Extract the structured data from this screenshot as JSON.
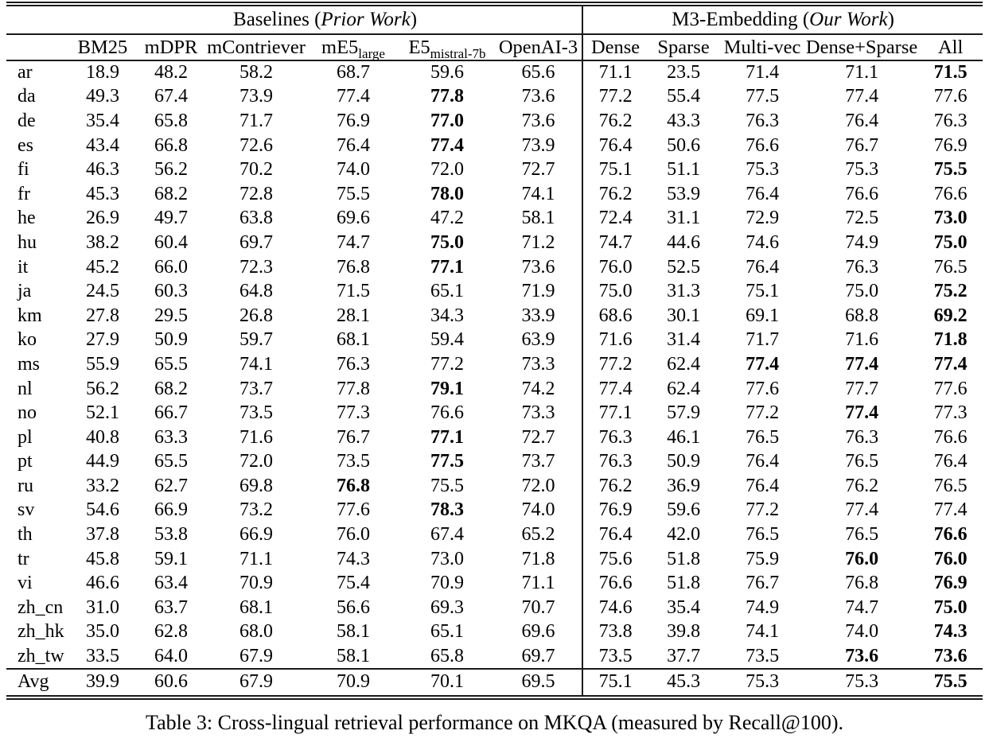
{
  "page": {
    "caption": "Table 3: Cross-lingual retrieval performance on MKQA (measured by Recall@100)."
  },
  "table": {
    "groups": [
      {
        "pre": "Baselines (",
        "italic": "Prior Work",
        "post": ")"
      },
      {
        "pre": "M3-Embedding (",
        "italic": "Our Work",
        "post": ")"
      }
    ],
    "columns": [
      {
        "main": "BM25",
        "sub": ""
      },
      {
        "main": "mDPR",
        "sub": ""
      },
      {
        "main": "mContriever",
        "sub": ""
      },
      {
        "main": "mE5",
        "sub": "large"
      },
      {
        "main": "E5",
        "sub": "mistral-7b"
      },
      {
        "main": "OpenAI-3",
        "sub": ""
      },
      {
        "main": "Dense",
        "sub": ""
      },
      {
        "main": "Sparse",
        "sub": ""
      },
      {
        "main": "Multi-vec",
        "sub": ""
      },
      {
        "main": "Dense+Sparse",
        "sub": ""
      },
      {
        "main": "All",
        "sub": ""
      }
    ],
    "rows": [
      {
        "lang": "ar",
        "values": [
          "18.9",
          "48.2",
          "58.2",
          "68.7",
          "59.6",
          "65.6",
          "71.1",
          "23.5",
          "71.4",
          "71.1",
          "71.5"
        ],
        "bold": [
          10
        ]
      },
      {
        "lang": "da",
        "values": [
          "49.3",
          "67.4",
          "73.9",
          "77.4",
          "77.8",
          "73.6",
          "77.2",
          "55.4",
          "77.5",
          "77.4",
          "77.6"
        ],
        "bold": [
          4
        ]
      },
      {
        "lang": "de",
        "values": [
          "35.4",
          "65.8",
          "71.7",
          "76.9",
          "77.0",
          "73.6",
          "76.2",
          "43.3",
          "76.3",
          "76.4",
          "76.3"
        ],
        "bold": [
          4
        ]
      },
      {
        "lang": "es",
        "values": [
          "43.4",
          "66.8",
          "72.6",
          "76.4",
          "77.4",
          "73.9",
          "76.4",
          "50.6",
          "76.6",
          "76.7",
          "76.9"
        ],
        "bold": [
          4
        ]
      },
      {
        "lang": "fi",
        "values": [
          "46.3",
          "56.2",
          "70.2",
          "74.0",
          "72.0",
          "72.7",
          "75.1",
          "51.1",
          "75.3",
          "75.3",
          "75.5"
        ],
        "bold": [
          10
        ]
      },
      {
        "lang": "fr",
        "values": [
          "45.3",
          "68.2",
          "72.8",
          "75.5",
          "78.0",
          "74.1",
          "76.2",
          "53.9",
          "76.4",
          "76.6",
          "76.6"
        ],
        "bold": [
          4
        ]
      },
      {
        "lang": "he",
        "values": [
          "26.9",
          "49.7",
          "63.8",
          "69.6",
          "47.2",
          "58.1",
          "72.4",
          "31.1",
          "72.9",
          "72.5",
          "73.0"
        ],
        "bold": [
          10
        ]
      },
      {
        "lang": "hu",
        "values": [
          "38.2",
          "60.4",
          "69.7",
          "74.7",
          "75.0",
          "71.2",
          "74.7",
          "44.6",
          "74.6",
          "74.9",
          "75.0"
        ],
        "bold": [
          4,
          10
        ]
      },
      {
        "lang": "it",
        "values": [
          "45.2",
          "66.0",
          "72.3",
          "76.8",
          "77.1",
          "73.6",
          "76.0",
          "52.5",
          "76.4",
          "76.3",
          "76.5"
        ],
        "bold": [
          4
        ]
      },
      {
        "lang": "ja",
        "values": [
          "24.5",
          "60.3",
          "64.8",
          "71.5",
          "65.1",
          "71.9",
          "75.0",
          "31.3",
          "75.1",
          "75.0",
          "75.2"
        ],
        "bold": [
          10
        ]
      },
      {
        "lang": "km",
        "values": [
          "27.8",
          "29.5",
          "26.8",
          "28.1",
          "34.3",
          "33.9",
          "68.6",
          "30.1",
          "69.1",
          "68.8",
          "69.2"
        ],
        "bold": [
          10
        ]
      },
      {
        "lang": "ko",
        "values": [
          "27.9",
          "50.9",
          "59.7",
          "68.1",
          "59.4",
          "63.9",
          "71.6",
          "31.4",
          "71.7",
          "71.6",
          "71.8"
        ],
        "bold": [
          10
        ]
      },
      {
        "lang": "ms",
        "values": [
          "55.9",
          "65.5",
          "74.1",
          "76.3",
          "77.2",
          "73.3",
          "77.2",
          "62.4",
          "77.4",
          "77.4",
          "77.4"
        ],
        "bold": [
          8,
          9,
          10
        ]
      },
      {
        "lang": "nl",
        "values": [
          "56.2",
          "68.2",
          "73.7",
          "77.8",
          "79.1",
          "74.2",
          "77.4",
          "62.4",
          "77.6",
          "77.7",
          "77.6"
        ],
        "bold": [
          4
        ]
      },
      {
        "lang": "no",
        "values": [
          "52.1",
          "66.7",
          "73.5",
          "77.3",
          "76.6",
          "73.3",
          "77.1",
          "57.9",
          "77.2",
          "77.4",
          "77.3"
        ],
        "bold": [
          9
        ]
      },
      {
        "lang": "pl",
        "values": [
          "40.8",
          "63.3",
          "71.6",
          "76.7",
          "77.1",
          "72.7",
          "76.3",
          "46.1",
          "76.5",
          "76.3",
          "76.6"
        ],
        "bold": [
          4
        ]
      },
      {
        "lang": "pt",
        "values": [
          "44.9",
          "65.5",
          "72.0",
          "73.5",
          "77.5",
          "73.7",
          "76.3",
          "50.9",
          "76.4",
          "76.5",
          "76.4"
        ],
        "bold": [
          4
        ]
      },
      {
        "lang": "ru",
        "values": [
          "33.2",
          "62.7",
          "69.8",
          "76.8",
          "75.5",
          "72.0",
          "76.2",
          "36.9",
          "76.4",
          "76.2",
          "76.5"
        ],
        "bold": [
          3
        ]
      },
      {
        "lang": "sv",
        "values": [
          "54.6",
          "66.9",
          "73.2",
          "77.6",
          "78.3",
          "74.0",
          "76.9",
          "59.6",
          "77.2",
          "77.4",
          "77.4"
        ],
        "bold": [
          4
        ]
      },
      {
        "lang": "th",
        "values": [
          "37.8",
          "53.8",
          "66.9",
          "76.0",
          "67.4",
          "65.2",
          "76.4",
          "42.0",
          "76.5",
          "76.5",
          "76.6"
        ],
        "bold": [
          10
        ]
      },
      {
        "lang": "tr",
        "values": [
          "45.8",
          "59.1",
          "71.1",
          "74.3",
          "73.0",
          "71.8",
          "75.6",
          "51.8",
          "75.9",
          "76.0",
          "76.0"
        ],
        "bold": [
          9,
          10
        ]
      },
      {
        "lang": "vi",
        "values": [
          "46.6",
          "63.4",
          "70.9",
          "75.4",
          "70.9",
          "71.1",
          "76.6",
          "51.8",
          "76.7",
          "76.8",
          "76.9"
        ],
        "bold": [
          10
        ]
      },
      {
        "lang": "zh_cn",
        "values": [
          "31.0",
          "63.7",
          "68.1",
          "56.6",
          "69.3",
          "70.7",
          "74.6",
          "35.4",
          "74.9",
          "74.7",
          "75.0"
        ],
        "bold": [
          10
        ]
      },
      {
        "lang": "zh_hk",
        "values": [
          "35.0",
          "62.8",
          "68.0",
          "58.1",
          "65.1",
          "69.6",
          "73.8",
          "39.8",
          "74.1",
          "74.0",
          "74.3"
        ],
        "bold": [
          10
        ]
      },
      {
        "lang": "zh_tw",
        "values": [
          "33.5",
          "64.0",
          "67.9",
          "58.1",
          "65.8",
          "69.7",
          "73.5",
          "37.7",
          "73.5",
          "73.6",
          "73.6"
        ],
        "bold": [
          9,
          10
        ]
      }
    ],
    "footer": {
      "lang": "Avg",
      "values": [
        "39.9",
        "60.6",
        "67.9",
        "70.9",
        "70.1",
        "69.5",
        "75.1",
        "45.3",
        "75.3",
        "75.3",
        "75.5"
      ],
      "bold": [
        10
      ]
    }
  }
}
